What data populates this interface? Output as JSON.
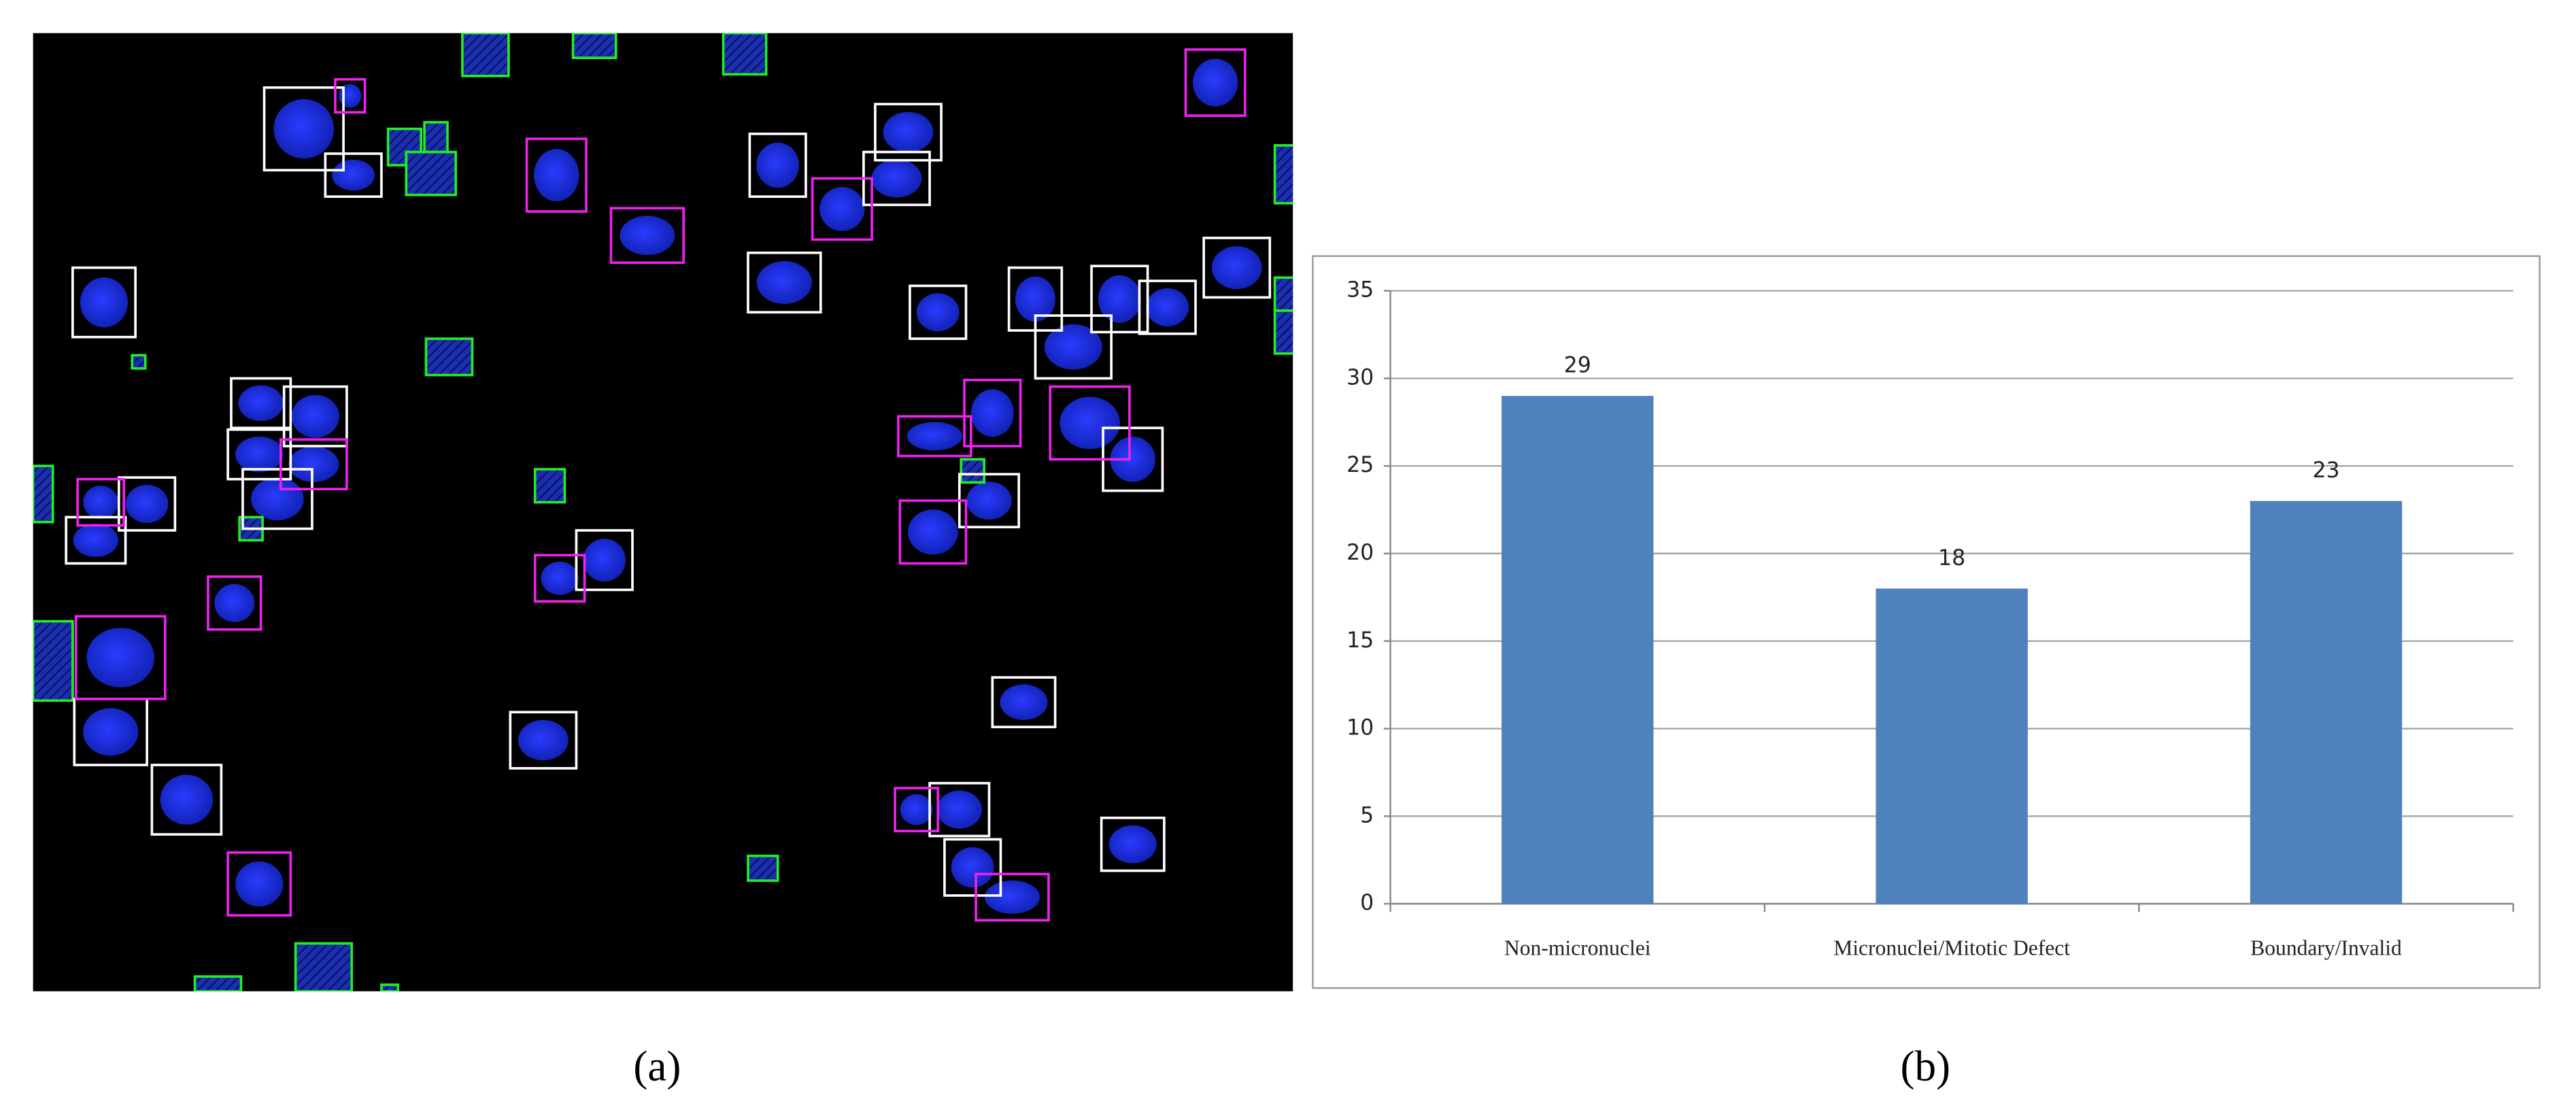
{
  "panel_labels": {
    "a": "(a)",
    "b": "(b)"
  },
  "chart_data": {
    "type": "bar",
    "categories": [
      "Non-micronuclei",
      "Micronuclei/Mitotic Defect",
      "Boundary/Invalid"
    ],
    "values": [
      29,
      18,
      23
    ],
    "color": "#4f81bd",
    "ylim": [
      0,
      35
    ],
    "yticks": [
      0,
      5,
      10,
      15,
      20,
      25,
      30,
      35
    ],
    "grid": true
  }
}
